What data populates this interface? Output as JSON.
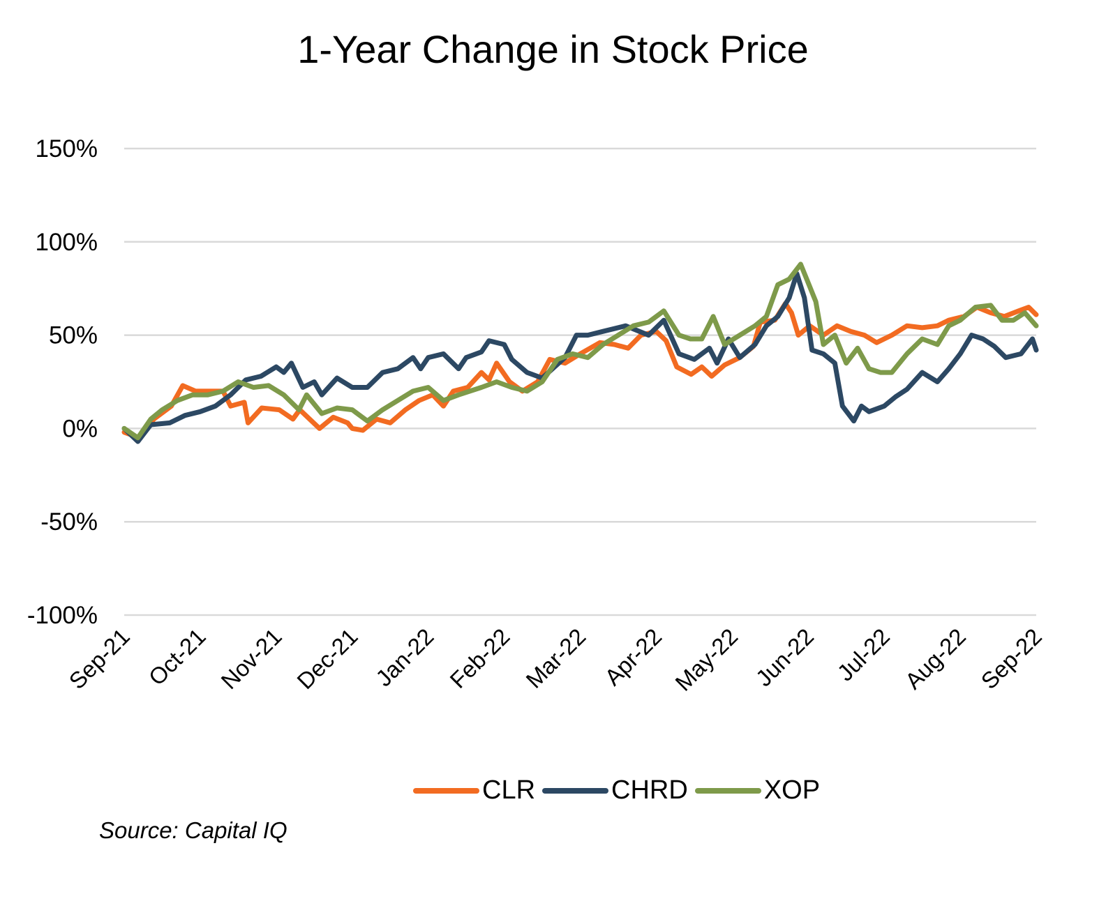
{
  "chart_data": {
    "type": "line",
    "title": "1-Year Change in Stock Price",
    "xlabel": "",
    "ylabel": "",
    "ylim": [
      -100,
      150
    ],
    "xlim": [
      0,
      12
    ],
    "grid": true,
    "legend_position": "bottom",
    "y_ticks": [
      {
        "value": 150,
        "label": "150%"
      },
      {
        "value": 100,
        "label": "100%"
      },
      {
        "value": 50,
        "label": "50%"
      },
      {
        "value": 0,
        "label": "0%"
      },
      {
        "value": -50,
        "label": "-50%"
      },
      {
        "value": -100,
        "label": "-100%"
      }
    ],
    "x_ticks": [
      "Sep-21",
      "Oct-21",
      "Nov-21",
      "Dec-21",
      "Jan-22",
      "Feb-22",
      "Mar-22",
      "Apr-22",
      "May-22",
      "Jun-22",
      "Jul-22",
      "Aug-22",
      "Sep-22"
    ],
    "series": [
      {
        "name": "CLR",
        "color": "#F26B21",
        "points": [
          [
            0,
            -2
          ],
          [
            0.2,
            -5
          ],
          [
            0.39,
            5
          ],
          [
            0.62,
            12
          ],
          [
            0.77,
            23
          ],
          [
            0.94,
            20
          ],
          [
            1.12,
            20
          ],
          [
            1.3,
            20
          ],
          [
            1.4,
            12
          ],
          [
            1.58,
            14
          ],
          [
            1.63,
            3
          ],
          [
            1.81,
            11
          ],
          [
            2.04,
            10
          ],
          [
            2.22,
            5
          ],
          [
            2.31,
            10
          ],
          [
            2.57,
            0
          ],
          [
            2.75,
            6
          ],
          [
            2.94,
            3
          ],
          [
            3.0,
            0
          ],
          [
            3.14,
            -1
          ],
          [
            3.32,
            5
          ],
          [
            3.5,
            3
          ],
          [
            3.7,
            10
          ],
          [
            3.88,
            15
          ],
          [
            4.06,
            18
          ],
          [
            4.2,
            12
          ],
          [
            4.33,
            20
          ],
          [
            4.52,
            22
          ],
          [
            4.7,
            30
          ],
          [
            4.8,
            26
          ],
          [
            4.9,
            35
          ],
          [
            5.07,
            25
          ],
          [
            5.24,
            20
          ],
          [
            5.44,
            25
          ],
          [
            5.6,
            37
          ],
          [
            5.8,
            35
          ],
          [
            6.0,
            40
          ],
          [
            6.26,
            46
          ],
          [
            6.45,
            45
          ],
          [
            6.63,
            43
          ],
          [
            6.8,
            50
          ],
          [
            7.0,
            52
          ],
          [
            7.13,
            47
          ],
          [
            7.27,
            33
          ],
          [
            7.46,
            29
          ],
          [
            7.6,
            33
          ],
          [
            7.73,
            28
          ],
          [
            7.9,
            34
          ],
          [
            8.1,
            38
          ],
          [
            8.28,
            44
          ],
          [
            8.37,
            57
          ],
          [
            8.56,
            58
          ],
          [
            8.7,
            67
          ],
          [
            8.78,
            62
          ],
          [
            8.87,
            50
          ],
          [
            9.02,
            55
          ],
          [
            9.2,
            50
          ],
          [
            9.38,
            55
          ],
          [
            9.56,
            52
          ],
          [
            9.74,
            50
          ],
          [
            9.9,
            46
          ],
          [
            10.1,
            50
          ],
          [
            10.3,
            55
          ],
          [
            10.5,
            54
          ],
          [
            10.7,
            55
          ],
          [
            10.85,
            58
          ],
          [
            11.05,
            60
          ],
          [
            11.22,
            65
          ],
          [
            11.4,
            62
          ],
          [
            11.58,
            60
          ],
          [
            11.77,
            63
          ],
          [
            11.9,
            65
          ],
          [
            12,
            61
          ]
        ]
      },
      {
        "name": "CHRD",
        "color": "#2C4863",
        "points": [
          [
            0,
            0
          ],
          [
            0.18,
            -7
          ],
          [
            0.35,
            2
          ],
          [
            0.6,
            3
          ],
          [
            0.8,
            7
          ],
          [
            1.0,
            9
          ],
          [
            1.2,
            12
          ],
          [
            1.4,
            18
          ],
          [
            1.6,
            26
          ],
          [
            1.8,
            28
          ],
          [
            2.0,
            33
          ],
          [
            2.1,
            30
          ],
          [
            2.2,
            35
          ],
          [
            2.35,
            22
          ],
          [
            2.5,
            25
          ],
          [
            2.6,
            18
          ],
          [
            2.8,
            27
          ],
          [
            3.0,
            22
          ],
          [
            3.2,
            22
          ],
          [
            3.4,
            30
          ],
          [
            3.6,
            32
          ],
          [
            3.8,
            38
          ],
          [
            3.9,
            32
          ],
          [
            4.0,
            38
          ],
          [
            4.2,
            40
          ],
          [
            4.4,
            32
          ],
          [
            4.5,
            38
          ],
          [
            4.7,
            41
          ],
          [
            4.8,
            47
          ],
          [
            5.0,
            45
          ],
          [
            5.1,
            37
          ],
          [
            5.3,
            30
          ],
          [
            5.5,
            27
          ],
          [
            5.8,
            38
          ],
          [
            5.95,
            50
          ],
          [
            6.1,
            50
          ],
          [
            6.3,
            52
          ],
          [
            6.6,
            55
          ],
          [
            6.9,
            50
          ],
          [
            7.1,
            58
          ],
          [
            7.3,
            40
          ],
          [
            7.5,
            37
          ],
          [
            7.7,
            43
          ],
          [
            7.8,
            35
          ],
          [
            7.95,
            48
          ],
          [
            8.1,
            38
          ],
          [
            8.3,
            45
          ],
          [
            8.45,
            55
          ],
          [
            8.6,
            60
          ],
          [
            8.75,
            70
          ],
          [
            8.85,
            83
          ],
          [
            8.95,
            70
          ],
          [
            9.05,
            42
          ],
          [
            9.2,
            40
          ],
          [
            9.35,
            35
          ],
          [
            9.45,
            12
          ],
          [
            9.6,
            4
          ],
          [
            9.7,
            12
          ],
          [
            9.8,
            9
          ],
          [
            10.0,
            12
          ],
          [
            10.15,
            17
          ],
          [
            10.3,
            21
          ],
          [
            10.5,
            30
          ],
          [
            10.7,
            25
          ],
          [
            10.85,
            32
          ],
          [
            11.0,
            40
          ],
          [
            11.15,
            50
          ],
          [
            11.3,
            48
          ],
          [
            11.45,
            44
          ],
          [
            11.6,
            38
          ],
          [
            11.8,
            40
          ],
          [
            11.95,
            48
          ],
          [
            12,
            42
          ]
        ]
      },
      {
        "name": "XOP",
        "color": "#7E9A4A",
        "points": [
          [
            0,
            0
          ],
          [
            0.18,
            -5
          ],
          [
            0.35,
            5
          ],
          [
            0.5,
            10
          ],
          [
            0.7,
            15
          ],
          [
            0.9,
            18
          ],
          [
            1.1,
            18
          ],
          [
            1.3,
            20
          ],
          [
            1.5,
            25
          ],
          [
            1.7,
            22
          ],
          [
            1.9,
            23
          ],
          [
            2.1,
            18
          ],
          [
            2.3,
            10
          ],
          [
            2.4,
            18
          ],
          [
            2.6,
            8
          ],
          [
            2.8,
            11
          ],
          [
            3.0,
            10
          ],
          [
            3.2,
            4
          ],
          [
            3.4,
            10
          ],
          [
            3.6,
            15
          ],
          [
            3.8,
            20
          ],
          [
            4.0,
            22
          ],
          [
            4.2,
            15
          ],
          [
            4.4,
            18
          ],
          [
            4.7,
            22
          ],
          [
            4.9,
            25
          ],
          [
            5.1,
            22
          ],
          [
            5.3,
            20
          ],
          [
            5.5,
            25
          ],
          [
            5.7,
            37
          ],
          [
            5.9,
            40
          ],
          [
            6.1,
            38
          ],
          [
            6.3,
            45
          ],
          [
            6.5,
            50
          ],
          [
            6.7,
            55
          ],
          [
            6.9,
            57
          ],
          [
            7.1,
            63
          ],
          [
            7.3,
            50
          ],
          [
            7.45,
            48
          ],
          [
            7.6,
            48
          ],
          [
            7.75,
            60
          ],
          [
            7.9,
            45
          ],
          [
            8.1,
            50
          ],
          [
            8.3,
            55
          ],
          [
            8.45,
            60
          ],
          [
            8.6,
            77
          ],
          [
            8.75,
            80
          ],
          [
            8.9,
            88
          ],
          [
            9.0,
            78
          ],
          [
            9.1,
            68
          ],
          [
            9.2,
            45
          ],
          [
            9.35,
            50
          ],
          [
            9.5,
            35
          ],
          [
            9.65,
            43
          ],
          [
            9.8,
            32
          ],
          [
            9.95,
            30
          ],
          [
            10.1,
            30
          ],
          [
            10.3,
            40
          ],
          [
            10.5,
            48
          ],
          [
            10.7,
            45
          ],
          [
            10.85,
            55
          ],
          [
            11.0,
            58
          ],
          [
            11.2,
            65
          ],
          [
            11.4,
            66
          ],
          [
            11.55,
            58
          ],
          [
            11.7,
            58
          ],
          [
            11.85,
            62
          ],
          [
            12,
            55
          ]
        ]
      }
    ],
    "source": "Source: Capital IQ"
  }
}
